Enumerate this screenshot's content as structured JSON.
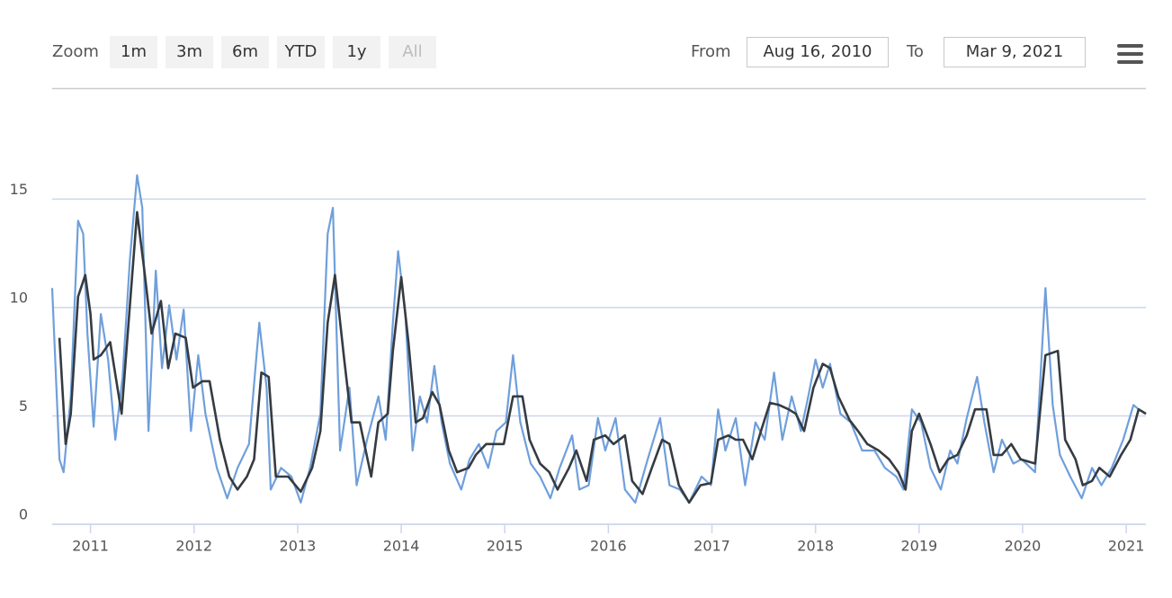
{
  "range_selector": {
    "zoom_label": "Zoom",
    "buttons": [
      "1m",
      "3m",
      "6m",
      "YTD",
      "1y",
      "All"
    ],
    "from_label": "From",
    "from": "Aug 16, 2010",
    "to_label": "To",
    "to": "Mar 9, 2021"
  },
  "chart_data": {
    "type": "line",
    "xlim": [
      2010.63,
      2021.19
    ],
    "xticks": [
      2011,
      2012,
      2013,
      2014,
      2015,
      2016,
      2017,
      2018,
      2019,
      2020,
      2021
    ],
    "ylim": [
      0,
      19
    ],
    "yticks": [
      0,
      5,
      10,
      15
    ],
    "grid": true,
    "series": [
      {
        "color": "#6f9fdb",
        "x": [
          2010.63,
          2010.7,
          2010.74,
          2010.81,
          2010.88,
          2010.93,
          2010.97,
          2011.03,
          2011.1,
          2011.17,
          2011.24,
          2011.31,
          2011.38,
          2011.45,
          2011.5,
          2011.56,
          2011.63,
          2011.69,
          2011.76,
          2011.83,
          2011.9,
          2011.97,
          2012.04,
          2012.11,
          2012.22,
          2012.32,
          2012.42,
          2012.53,
          2012.63,
          2012.7,
          2012.74,
          2012.84,
          2012.94,
          2013.03,
          2013.12,
          2013.22,
          2013.29,
          2013.34,
          2013.41,
          2013.5,
          2013.57,
          2013.67,
          2013.78,
          2013.85,
          2013.92,
          2013.97,
          2014.04,
          2014.11,
          2014.18,
          2014.25,
          2014.32,
          2014.39,
          2014.47,
          2014.58,
          2014.66,
          2014.75,
          2014.84,
          2014.92,
          2015.01,
          2015.08,
          2015.15,
          2015.25,
          2015.34,
          2015.44,
          2015.53,
          2015.65,
          2015.72,
          2015.81,
          2015.9,
          2015.97,
          2016.07,
          2016.16,
          2016.26,
          2016.38,
          2016.5,
          2016.59,
          2016.69,
          2016.78,
          2016.9,
          2016.99,
          2017.06,
          2017.13,
          2017.23,
          2017.32,
          2017.42,
          2017.51,
          2017.6,
          2017.68,
          2017.77,
          2017.86,
          2017.93,
          2018.0,
          2018.07,
          2018.14,
          2018.24,
          2018.34,
          2018.45,
          2018.57,
          2018.67,
          2018.78,
          2018.85,
          2018.93,
          2019.02,
          2019.11,
          2019.21,
          2019.3,
          2019.37,
          2019.46,
          2019.56,
          2019.63,
          2019.72,
          2019.8,
          2019.91,
          2019.99,
          2020.12,
          2020.22,
          2020.29,
          2020.36,
          2020.46,
          2020.57,
          2020.67,
          2020.76,
          2020.86,
          2020.97,
          2021.07,
          2021.12,
          2021.19
        ],
        "values": [
          10.9,
          3.0,
          2.4,
          5.9,
          14.0,
          13.4,
          8.8,
          4.5,
          9.7,
          7.6,
          3.9,
          6.8,
          12.2,
          16.1,
          14.6,
          4.3,
          11.7,
          7.2,
          10.1,
          7.6,
          9.9,
          4.3,
          7.8,
          5.1,
          2.6,
          1.2,
          2.6,
          3.7,
          9.3,
          6.3,
          1.6,
          2.6,
          2.2,
          1.0,
          2.6,
          5.1,
          13.4,
          14.6,
          3.4,
          6.3,
          1.8,
          3.9,
          5.9,
          3.9,
          9.3,
          12.6,
          9.7,
          3.4,
          5.9,
          4.7,
          7.3,
          4.7,
          2.8,
          1.6,
          3.0,
          3.7,
          2.6,
          4.3,
          4.7,
          7.8,
          4.7,
          2.8,
          2.2,
          1.2,
          2.6,
          4.1,
          1.6,
          1.8,
          4.9,
          3.4,
          4.9,
          1.6,
          1.0,
          3.0,
          4.9,
          1.8,
          1.6,
          1.0,
          2.2,
          1.8,
          5.3,
          3.4,
          4.9,
          1.8,
          4.7,
          3.9,
          7.0,
          3.9,
          5.9,
          4.3,
          5.9,
          7.6,
          6.3,
          7.4,
          5.1,
          4.7,
          3.4,
          3.4,
          2.6,
          2.2,
          1.6,
          5.3,
          4.7,
          2.6,
          1.6,
          3.4,
          2.8,
          4.9,
          6.8,
          4.7,
          2.4,
          3.9,
          2.8,
          3.0,
          2.4,
          10.9,
          5.5,
          3.2,
          2.2,
          1.2,
          2.6,
          1.8,
          2.6,
          3.9,
          5.5,
          5.3,
          5.1
        ]
      },
      {
        "color": "#353b41",
        "x": [
          2010.7,
          2010.76,
          2010.81,
          2010.88,
          2010.95,
          2011.0,
          2011.03,
          2011.1,
          2011.19,
          2011.3,
          2011.38,
          2011.45,
          2011.52,
          2011.59,
          2011.68,
          2011.75,
          2011.82,
          2011.92,
          2011.99,
          2012.08,
          2012.15,
          2012.25,
          2012.34,
          2012.42,
          2012.51,
          2012.58,
          2012.65,
          2012.72,
          2012.79,
          2012.91,
          2013.03,
          2013.14,
          2013.22,
          2013.29,
          2013.36,
          2013.45,
          2013.52,
          2013.6,
          2013.71,
          2013.78,
          2013.87,
          2013.92,
          2014.0,
          2014.07,
          2014.14,
          2014.21,
          2014.3,
          2014.37,
          2014.46,
          2014.54,
          2014.65,
          2014.72,
          2014.82,
          2014.91,
          2014.99,
          2015.08,
          2015.17,
          2015.24,
          2015.34,
          2015.43,
          2015.51,
          2015.62,
          2015.69,
          2015.79,
          2015.86,
          2015.97,
          2016.05,
          2016.16,
          2016.23,
          2016.33,
          2016.42,
          2016.52,
          2016.59,
          2016.68,
          2016.78,
          2016.89,
          2016.99,
          2017.06,
          2017.16,
          2017.23,
          2017.3,
          2017.39,
          2017.48,
          2017.56,
          2017.65,
          2017.74,
          2017.81,
          2017.89,
          2017.98,
          2018.07,
          2018.14,
          2018.22,
          2018.33,
          2018.41,
          2018.5,
          2018.61,
          2018.71,
          2018.8,
          2018.87,
          2018.93,
          2019.0,
          2019.11,
          2019.2,
          2019.28,
          2019.37,
          2019.46,
          2019.54,
          2019.65,
          2019.72,
          2019.8,
          2019.89,
          2019.98,
          2020.12,
          2020.22,
          2020.34,
          2020.41,
          2020.51,
          2020.58,
          2020.67,
          2020.74,
          2020.84,
          2020.95,
          2021.04,
          2021.12,
          2021.19
        ],
        "values": [
          8.6,
          3.7,
          5.1,
          10.5,
          11.5,
          9.7,
          7.6,
          7.8,
          8.4,
          5.1,
          10.1,
          14.4,
          11.7,
          8.8,
          10.3,
          7.2,
          8.8,
          8.6,
          6.3,
          6.6,
          6.6,
          3.9,
          2.2,
          1.6,
          2.2,
          3.0,
          7.0,
          6.8,
          2.2,
          2.2,
          1.5,
          2.6,
          4.3,
          9.3,
          11.5,
          7.6,
          4.7,
          4.7,
          2.2,
          4.7,
          5.1,
          8.0,
          11.4,
          8.4,
          4.7,
          4.9,
          6.1,
          5.5,
          3.4,
          2.4,
          2.6,
          3.2,
          3.7,
          3.7,
          3.7,
          5.9,
          5.9,
          3.9,
          2.8,
          2.4,
          1.6,
          2.6,
          3.4,
          2.0,
          3.9,
          4.1,
          3.7,
          4.1,
          2.0,
          1.4,
          2.6,
          3.9,
          3.7,
          1.8,
          1.0,
          1.8,
          1.9,
          3.9,
          4.1,
          3.9,
          3.9,
          3.0,
          4.4,
          5.6,
          5.5,
          5.3,
          5.1,
          4.3,
          6.3,
          7.4,
          7.2,
          5.9,
          4.8,
          4.3,
          3.7,
          3.4,
          3.0,
          2.4,
          1.6,
          4.3,
          5.1,
          3.7,
          2.4,
          3.0,
          3.2,
          4.1,
          5.3,
          5.3,
          3.2,
          3.2,
          3.7,
          3.0,
          2.8,
          7.8,
          8.0,
          3.9,
          3.0,
          1.8,
          2.0,
          2.6,
          2.2,
          3.2,
          3.9,
          5.3,
          5.1
        ]
      }
    ]
  }
}
